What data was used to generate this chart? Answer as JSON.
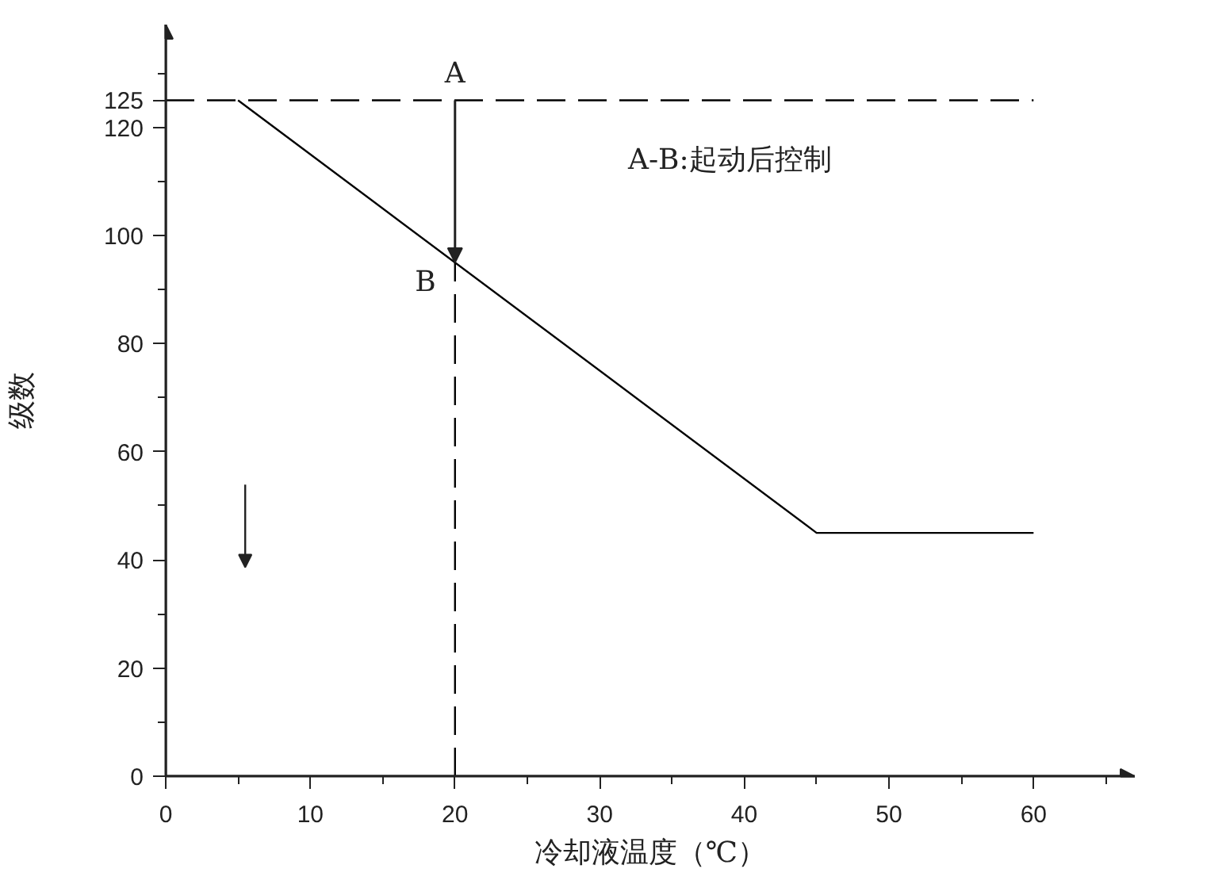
{
  "chart_data": {
    "type": "line",
    "xlabel": "冷却液温度（℃）",
    "ylabel": "级数",
    "xlim": [
      0,
      67
    ],
    "ylim": [
      0,
      139
    ],
    "xticks": [
      0,
      {
        "value": 5,
        "label": null
      },
      10,
      {
        "value": 15,
        "label": null
      },
      20,
      {
        "value": 25,
        "label": null
      },
      30,
      {
        "value": 35,
        "label": null
      },
      40,
      {
        "value": 45,
        "label": null
      },
      50,
      {
        "value": 55,
        "label": null
      },
      60,
      {
        "value": 65,
        "label": null
      }
    ],
    "yticks": [
      0,
      {
        "value": 10,
        "label": null
      },
      20,
      {
        "value": 30,
        "label": null
      },
      40,
      {
        "value": 50,
        "label": null
      },
      60,
      {
        "value": 70,
        "label": null
      },
      80,
      {
        "value": 90,
        "label": null
      },
      100,
      {
        "value": 110,
        "label": null
      },
      120,
      125,
      {
        "value": 130,
        "label": null
      }
    ],
    "series": [
      {
        "color": "#000000",
        "x": [
          5,
          45,
          60
        ],
        "values": [
          125,
          45,
          45
        ],
        "line_style": "solid"
      },
      {
        "color": "#000000",
        "x": [
          0,
          60
        ],
        "values": [
          125,
          125
        ],
        "line_style": "dashed"
      },
      {
        "color": "#000000",
        "x": [
          20,
          20
        ],
        "values": [
          0,
          95
        ],
        "line_style": "dashed"
      }
    ],
    "annotations": [
      {
        "text": "A",
        "x": 20,
        "y": 125
      },
      {
        "text": "B",
        "x": 20,
        "y": 95
      },
      "A-B:起动后控制"
    ]
  }
}
